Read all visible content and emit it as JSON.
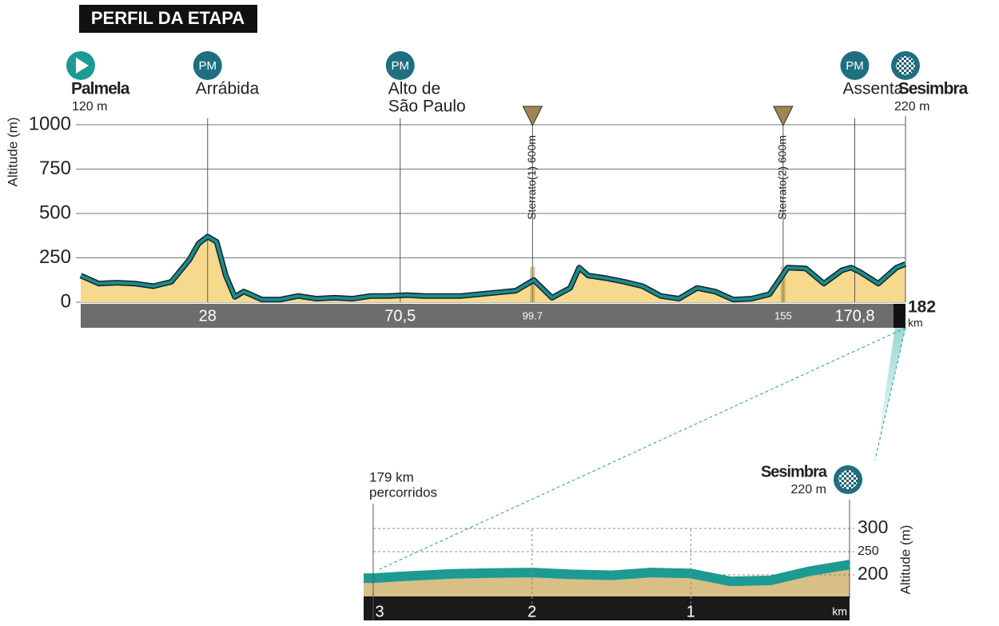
{
  "chart_data": [
    {
      "type": "area",
      "title": "PERFIL DA ETAPA",
      "y_label": "Altitude (m)",
      "x_unit": "km",
      "xlim": [
        0,
        182
      ],
      "ylim": [
        0,
        1000
      ],
      "yticks": [
        0,
        250,
        500,
        750,
        1000
      ],
      "grid": true,
      "line_color": "#1d8c86",
      "fill_color": "#f6d98c",
      "x": [
        0,
        4,
        8,
        12,
        16,
        20,
        24,
        26,
        28,
        30,
        32,
        34,
        36,
        40,
        44,
        48,
        52,
        56,
        60,
        64,
        68,
        72,
        76,
        80,
        84,
        88,
        92,
        96,
        100,
        104,
        108,
        110,
        112,
        116,
        120,
        124,
        128,
        132,
        136,
        140,
        144,
        148,
        152,
        156,
        160,
        164,
        168,
        170,
        172,
        176,
        180,
        182
      ],
      "values": [
        150,
        105,
        110,
        105,
        90,
        115,
        240,
        330,
        370,
        340,
        150,
        30,
        60,
        15,
        15,
        35,
        20,
        25,
        20,
        35,
        35,
        40,
        35,
        35,
        35,
        45,
        55,
        65,
        125,
        25,
        80,
        195,
        150,
        135,
        115,
        90,
        35,
        20,
        80,
        60,
        15,
        20,
        45,
        195,
        190,
        105,
        180,
        195,
        170,
        105,
        195,
        215
      ],
      "start": {
        "name": "Palmela",
        "altitude": "120 m"
      },
      "finish": {
        "name": "Sesimbra",
        "altitude": "220 m",
        "km": 182
      },
      "climbs": [
        {
          "category": "PM",
          "name_lines": [
            "Arrábida"
          ],
          "km": 28
        },
        {
          "category": "PM",
          "name_lines": [
            "Alto de",
            "São Paulo"
          ],
          "km": {
            "value": 70.5,
            "label": "70,5"
          }
        },
        {
          "category": "PM",
          "name_lines": [
            "Assenta"
          ],
          "km": {
            "value": 170.8,
            "label": "170,8"
          }
        }
      ],
      "sectors": [
        {
          "label": "Sterrato(1) 600m",
          "km": 99.7
        },
        {
          "label": "Sterrato(2) 600m",
          "km": 155
        }
      ]
    },
    {
      "type": "area",
      "y_label": "Altitude (m)",
      "x_unit": "km",
      "xlim": [
        3,
        0
      ],
      "xticks": [
        3,
        2,
        1
      ],
      "ylim": [
        150,
        350
      ],
      "yticks": [
        200,
        250,
        300
      ],
      "line_color": "#1d9a92",
      "fill_color": "#d8bf86",
      "x": [
        3,
        2.75,
        2.5,
        2.25,
        2,
        1.75,
        1.5,
        1.25,
        1,
        0.75,
        0.5,
        0.25,
        0
      ],
      "values": [
        193,
        198,
        202,
        204,
        205,
        201,
        199,
        205,
        203,
        186,
        188,
        208,
        222
      ],
      "start_note_lines": [
        "179 km",
        "percorridos"
      ],
      "finish": {
        "name": "Sesimbra",
        "altitude": "220 m"
      }
    }
  ]
}
